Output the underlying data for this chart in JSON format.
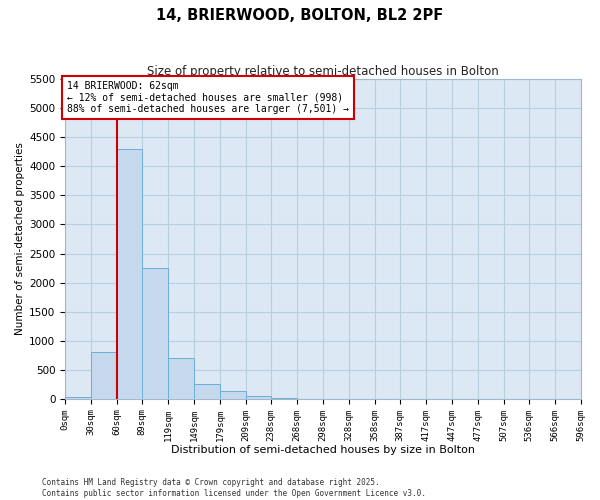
{
  "title": "14, BRIERWOOD, BOLTON, BL2 2PF",
  "subtitle": "Size of property relative to semi-detached houses in Bolton",
  "xlabel": "Distribution of semi-detached houses by size in Bolton",
  "ylabel": "Number of semi-detached properties",
  "property_label": "14 BRIERWOOD: 62sqm",
  "pct_smaller": 12,
  "pct_larger": 88,
  "count_smaller": 998,
  "count_larger": 7501,
  "bin_edges": [
    0,
    30,
    60,
    89,
    119,
    149,
    179,
    209,
    238,
    268,
    298,
    328,
    358,
    387,
    417,
    447,
    477,
    507,
    536,
    566,
    596
  ],
  "bar_heights": [
    30,
    800,
    4300,
    2250,
    700,
    250,
    130,
    50,
    10,
    5,
    2,
    1,
    0,
    0,
    0,
    0,
    0,
    0,
    0,
    0
  ],
  "tick_labels": [
    "0sqm",
    "30sqm",
    "60sqm",
    "89sqm",
    "119sqm",
    "149sqm",
    "179sqm",
    "209sqm",
    "238sqm",
    "268sqm",
    "298sqm",
    "328sqm",
    "358sqm",
    "387sqm",
    "417sqm",
    "447sqm",
    "477sqm",
    "507sqm",
    "536sqm",
    "566sqm",
    "596sqm"
  ],
  "bar_color": "#c5d8ee",
  "bar_edge_color": "#6baed6",
  "vline_color": "#cc0000",
  "vline_x": 60,
  "ylim": [
    0,
    5500
  ],
  "yticks": [
    0,
    500,
    1000,
    1500,
    2000,
    2500,
    3000,
    3500,
    4000,
    4500,
    5000,
    5500
  ],
  "grid_color": "#b8cfe0",
  "bg_color": "#dce8f4",
  "annotation_box_color": "#cc0000",
  "footer_line1": "Contains HM Land Registry data © Crown copyright and database right 2025.",
  "footer_line2": "Contains public sector information licensed under the Open Government Licence v3.0."
}
